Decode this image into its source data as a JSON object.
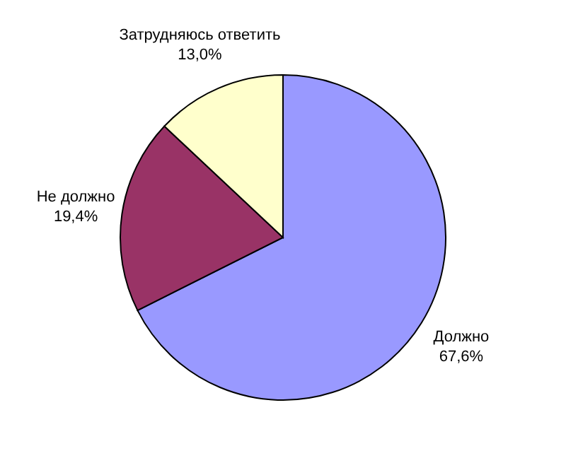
{
  "chart_data": {
    "type": "pie",
    "categories": [
      "Должно",
      "Не должно",
      "Затрудняюсь ответить"
    ],
    "values": [
      67.6,
      19.4,
      13.0
    ],
    "colors": [
      "#9999ff",
      "#993366",
      "#ffffcc"
    ],
    "value_labels": [
      "67,6%",
      "19,4%",
      "13,0%"
    ],
    "legend": false
  }
}
